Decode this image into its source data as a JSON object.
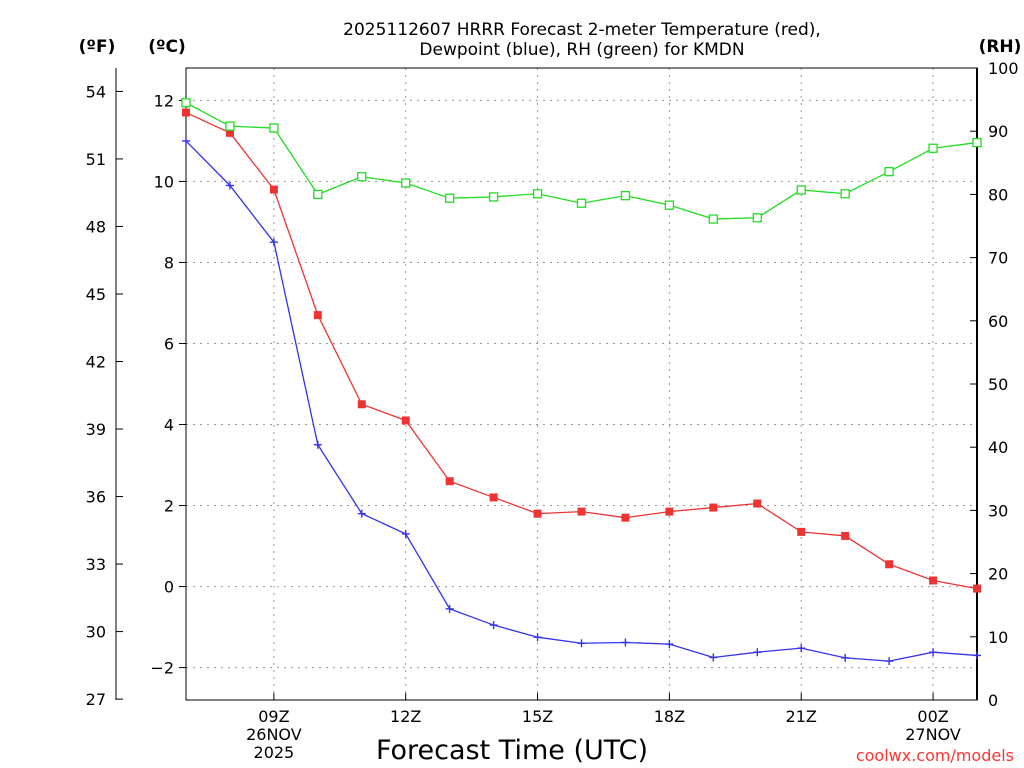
{
  "chart_data": {
    "type": "line",
    "title_lines": [
      "2025112607 HRRR Forecast 2-meter Temperature (red),",
      "Dewpoint (blue), RH (green) for KMDN"
    ],
    "xlabel": "Forecast Time (UTC)",
    "credit": "coolwx.com/models",
    "unit_labels": {
      "fahrenheit": "(ºF)",
      "celsius": "(ºC)",
      "rh": "(RH)"
    },
    "x_range": [
      7,
      25
    ],
    "x_ticks": [
      {
        "x": 9,
        "lines": [
          "09Z",
          "26NOV",
          "2025"
        ]
      },
      {
        "x": 12,
        "lines": [
          "12Z"
        ]
      },
      {
        "x": 15,
        "lines": [
          "15Z"
        ]
      },
      {
        "x": 18,
        "lines": [
          "18Z"
        ]
      },
      {
        "x": 21,
        "lines": [
          "21Z"
        ]
      },
      {
        "x": 24,
        "lines": [
          "00Z",
          "27NOV"
        ]
      }
    ],
    "ylim_celsius": [
      -2.8,
      12.8
    ],
    "y_ticks_celsius": [
      -2,
      0,
      2,
      4,
      6,
      8,
      10,
      12
    ],
    "y_ticks_fahrenheit": [
      27,
      30,
      33,
      36,
      39,
      42,
      45,
      48,
      51,
      54
    ],
    "ylim_rh": [
      0,
      100
    ],
    "y_ticks_rh": [
      0,
      10,
      20,
      30,
      40,
      50,
      60,
      70,
      80,
      90,
      100
    ],
    "grid": true,
    "x": [
      7,
      8,
      9,
      10,
      11,
      12,
      13,
      14,
      15,
      16,
      17,
      18,
      19,
      20,
      21,
      22,
      23,
      24,
      25
    ],
    "series": [
      {
        "name": "Temperature",
        "axis": "celsius",
        "color": "#ee3333",
        "marker": "filled-square",
        "values": [
          11.7,
          11.2,
          9.8,
          6.7,
          4.5,
          4.1,
          2.6,
          2.2,
          1.8,
          1.85,
          1.7,
          1.85,
          1.95,
          2.05,
          1.35,
          1.25,
          0.55,
          0.15,
          -0.05
        ]
      },
      {
        "name": "Dewpoint",
        "axis": "celsius",
        "color": "#3333ee",
        "marker": "plus",
        "values": [
          11.0,
          9.9,
          8.5,
          3.5,
          1.8,
          1.3,
          -0.55,
          -0.95,
          -1.25,
          -1.4,
          -1.38,
          -1.42,
          -1.75,
          -1.62,
          -1.52,
          -1.76,
          -1.84,
          -1.62,
          -1.7
        ]
      },
      {
        "name": "RH",
        "axis": "rh",
        "color": "#22dd22",
        "marker": "open-square",
        "values": [
          94.5,
          90.8,
          90.5,
          80.0,
          82.8,
          81.8,
          79.4,
          79.6,
          80.1,
          78.6,
          79.8,
          78.3,
          76.1,
          76.3,
          80.7,
          80.1,
          83.6,
          87.3,
          88.2
        ]
      }
    ]
  }
}
